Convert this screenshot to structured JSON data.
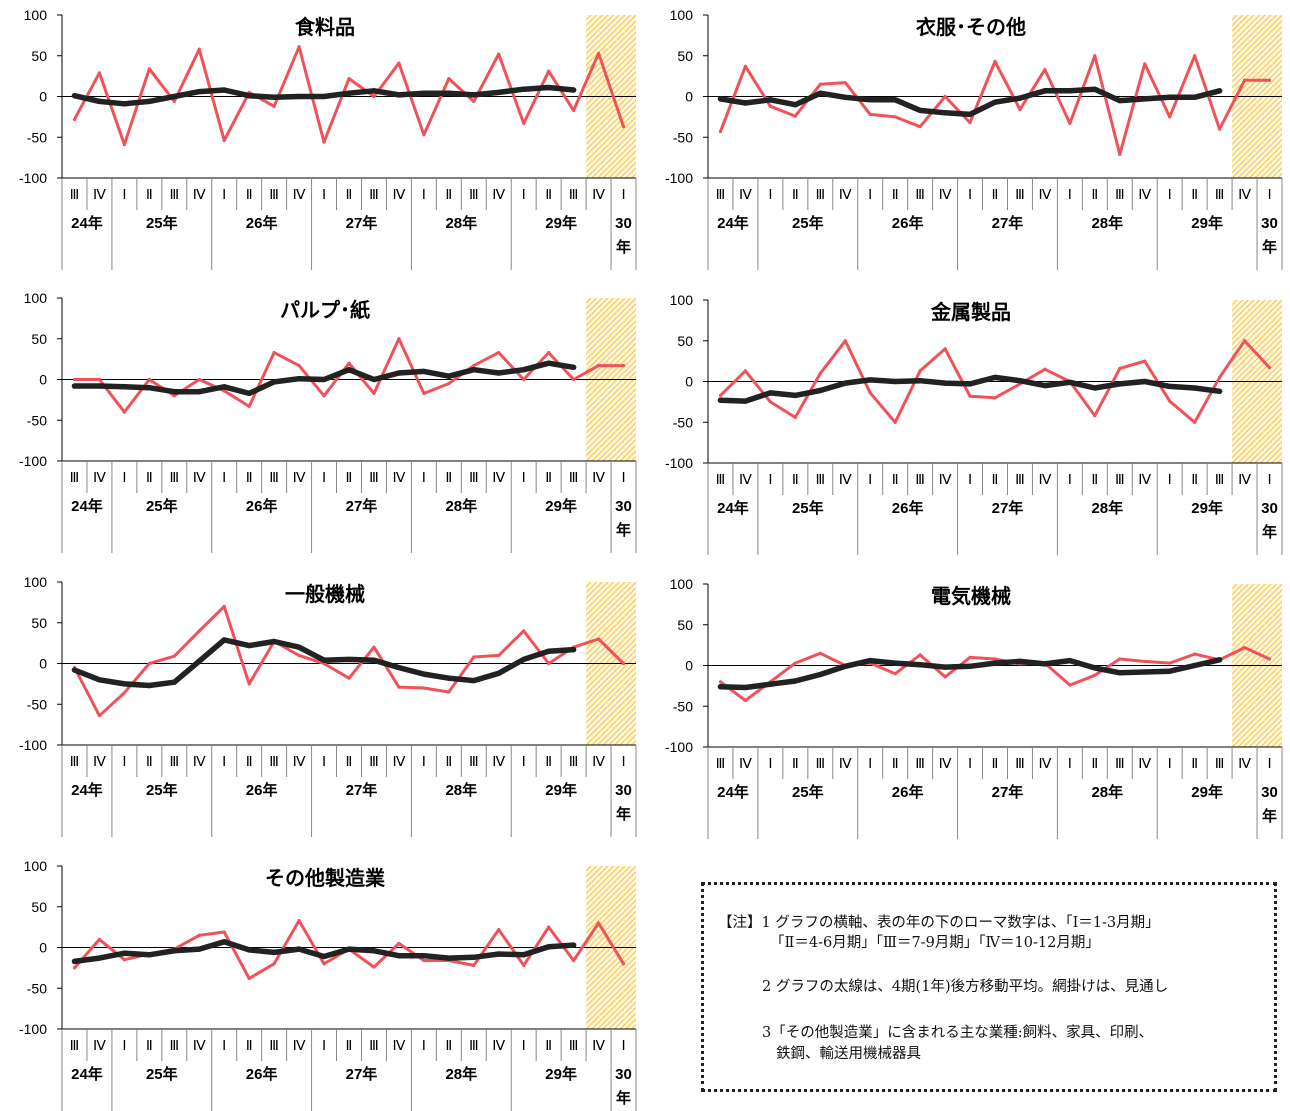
{
  "axis": {
    "quarter_labels": [
      "Ⅲ",
      "Ⅳ",
      "Ⅰ",
      "Ⅱ",
      "Ⅲ",
      "Ⅳ",
      "Ⅰ",
      "Ⅱ",
      "Ⅲ",
      "Ⅳ",
      "Ⅰ",
      "Ⅱ",
      "Ⅲ",
      "Ⅳ",
      "Ⅰ",
      "Ⅱ",
      "Ⅲ",
      "Ⅳ",
      "Ⅰ",
      "Ⅱ",
      "Ⅲ",
      "Ⅳ",
      "Ⅰ"
    ],
    "year_labels": [
      "24年",
      "25年",
      "26年",
      "27年",
      "28年",
      "29年"
    ],
    "last_year_label": [
      "30",
      "年"
    ],
    "ytick_labels": [
      "100",
      "50",
      "0",
      "-50",
      "-100"
    ]
  },
  "colors": {
    "di_line": "#f0525a",
    "moving_average": "#222222",
    "forecast_hatch": "#f5b51e",
    "forecast_fill": "#fff6dc"
  },
  "chart_data": [
    {
      "type": "line",
      "title": "食料品",
      "ylim": [
        -100,
        100
      ],
      "grid": false,
      "categories": [
        "24年Ⅲ",
        "24年Ⅳ",
        "25年Ⅰ",
        "25年Ⅱ",
        "25年Ⅲ",
        "25年Ⅳ",
        "26年Ⅰ",
        "26年Ⅱ",
        "26年Ⅲ",
        "26年Ⅳ",
        "27年Ⅰ",
        "27年Ⅱ",
        "27年Ⅲ",
        "27年Ⅳ",
        "28年Ⅰ",
        "28年Ⅱ",
        "28年Ⅲ",
        "28年Ⅳ",
        "29年Ⅰ",
        "29年Ⅱ",
        "29年Ⅲ",
        "29年Ⅳ",
        "30年Ⅰ"
      ],
      "forecast_from_index": 21,
      "series": [
        {
          "values": [
            -28,
            29,
            -59,
            34,
            -6,
            58,
            -54,
            5,
            -12,
            61,
            -56,
            22,
            0,
            41,
            -47,
            22,
            -6,
            52,
            -33,
            31,
            -17,
            53,
            -37
          ]
        },
        {
          "values": [
            1,
            -6,
            -9,
            -6,
            0,
            6,
            8,
            1,
            -1,
            0,
            0,
            4,
            7,
            2,
            4,
            4,
            2,
            5,
            9,
            11,
            8,
            null,
            null
          ]
        }
      ]
    },
    {
      "type": "line",
      "title": "衣服･その他",
      "ylim": [
        -100,
        100
      ],
      "grid": false,
      "categories": [
        "24年Ⅲ",
        "24年Ⅳ",
        "25年Ⅰ",
        "25年Ⅱ",
        "25年Ⅲ",
        "25年Ⅳ",
        "26年Ⅰ",
        "26年Ⅱ",
        "26年Ⅲ",
        "26年Ⅳ",
        "27年Ⅰ",
        "27年Ⅱ",
        "27年Ⅲ",
        "27年Ⅳ",
        "28年Ⅰ",
        "28年Ⅱ",
        "28年Ⅲ",
        "28年Ⅳ",
        "29年Ⅰ",
        "29年Ⅱ",
        "29年Ⅲ",
        "29年Ⅳ",
        "30年Ⅰ"
      ],
      "forecast_from_index": 21,
      "series": [
        {
          "values": [
            -43,
            37,
            -12,
            -24,
            15,
            17,
            -22,
            -25,
            -37,
            0,
            -32,
            43,
            -16,
            33,
            -33,
            50,
            -71,
            40,
            -25,
            50,
            -40,
            20,
            20
          ]
        },
        {
          "values": [
            -3,
            -8,
            -4,
            -10,
            4,
            -1,
            -4,
            -4,
            -17,
            -20,
            -22,
            -7,
            -2,
            7,
            7,
            9,
            -5,
            -3,
            -1,
            -1,
            7,
            null,
            null
          ]
        }
      ]
    },
    {
      "type": "line",
      "title": "パルプ･紙",
      "ylim": [
        -100,
        100
      ],
      "grid": false,
      "categories": [
        "24年Ⅲ",
        "24年Ⅳ",
        "25年Ⅰ",
        "25年Ⅱ",
        "25年Ⅲ",
        "25年Ⅳ",
        "26年Ⅰ",
        "26年Ⅱ",
        "26年Ⅲ",
        "26年Ⅳ",
        "27年Ⅰ",
        "27年Ⅱ",
        "27年Ⅲ",
        "27年Ⅳ",
        "28年Ⅰ",
        "28年Ⅱ",
        "28年Ⅲ",
        "28年Ⅳ",
        "29年Ⅰ",
        "29年Ⅱ",
        "29年Ⅲ",
        "29年Ⅳ",
        "30年Ⅰ"
      ],
      "forecast_from_index": 21,
      "series": [
        {
          "values": [
            0,
            0,
            -40,
            0,
            -20,
            0,
            -14,
            -33,
            33,
            17,
            -20,
            20,
            -17,
            50,
            -17,
            -5,
            17,
            33,
            0,
            33,
            0,
            17,
            17
          ]
        },
        {
          "values": [
            -8,
            -8,
            -9,
            -10,
            -15,
            -15,
            -9,
            -17,
            -3,
            1,
            0,
            12,
            0,
            8,
            10,
            4,
            12,
            8,
            12,
            20,
            15,
            null,
            null
          ]
        }
      ]
    },
    {
      "type": "line",
      "title": "金属製品",
      "ylim": [
        -100,
        100
      ],
      "grid": false,
      "categories": [
        "24年Ⅲ",
        "24年Ⅳ",
        "25年Ⅰ",
        "25年Ⅱ",
        "25年Ⅲ",
        "25年Ⅳ",
        "26年Ⅰ",
        "26年Ⅱ",
        "26年Ⅲ",
        "26年Ⅳ",
        "27年Ⅰ",
        "27年Ⅱ",
        "27年Ⅲ",
        "27年Ⅳ",
        "28年Ⅰ",
        "28年Ⅱ",
        "28年Ⅲ",
        "28年Ⅳ",
        "29年Ⅰ",
        "29年Ⅱ",
        "29年Ⅲ",
        "29年Ⅳ",
        "30年Ⅰ"
      ],
      "forecast_from_index": 21,
      "series": [
        {
          "values": [
            -17,
            13,
            -25,
            -44,
            10,
            50,
            -14,
            -50,
            13,
            40,
            -18,
            -20,
            -3,
            15,
            0,
            -42,
            16,
            25,
            -24,
            -50,
            5,
            50,
            17
          ]
        },
        {
          "values": [
            -23,
            -24,
            -14,
            -17,
            -11,
            -2,
            2,
            0,
            1,
            -2,
            -3,
            5,
            1,
            -5,
            -1,
            -8,
            -3,
            0,
            -6,
            -8,
            -12,
            null,
            null
          ]
        }
      ]
    },
    {
      "type": "line",
      "title": "一般機械",
      "ylim": [
        -100,
        100
      ],
      "grid": false,
      "categories": [
        "24年Ⅲ",
        "24年Ⅳ",
        "25年Ⅰ",
        "25年Ⅱ",
        "25年Ⅲ",
        "25年Ⅳ",
        "26年Ⅰ",
        "26年Ⅱ",
        "26年Ⅲ",
        "26年Ⅳ",
        "27年Ⅰ",
        "27年Ⅱ",
        "27年Ⅲ",
        "27年Ⅳ",
        "28年Ⅰ",
        "28年Ⅱ",
        "28年Ⅲ",
        "28年Ⅳ",
        "29年Ⅰ",
        "29年Ⅱ",
        "29年Ⅲ",
        "29年Ⅳ",
        "30年Ⅰ"
      ],
      "forecast_from_index": 21,
      "series": [
        {
          "values": [
            -5,
            -64,
            -36,
            0,
            9,
            40,
            70,
            -25,
            27,
            10,
            0,
            -18,
            20,
            -29,
            -30,
            -35,
            8,
            10,
            40,
            0,
            20,
            30,
            0
          ]
        },
        {
          "values": [
            -8,
            -20,
            -25,
            -27,
            -23,
            3,
            29,
            22,
            27,
            20,
            4,
            5,
            4,
            -5,
            -13,
            -18,
            -21,
            -12,
            5,
            15,
            17,
            null,
            null
          ]
        }
      ]
    },
    {
      "type": "line",
      "title": "電気機械",
      "ylim": [
        -100,
        100
      ],
      "grid": false,
      "categories": [
        "24年Ⅲ",
        "24年Ⅳ",
        "25年Ⅰ",
        "25年Ⅱ",
        "25年Ⅲ",
        "25年Ⅳ",
        "26年Ⅰ",
        "26年Ⅱ",
        "26年Ⅲ",
        "26年Ⅳ",
        "27年Ⅰ",
        "27年Ⅱ",
        "27年Ⅲ",
        "27年Ⅳ",
        "28年Ⅰ",
        "28年Ⅱ",
        "28年Ⅲ",
        "28年Ⅳ",
        "29年Ⅰ",
        "29年Ⅱ",
        "29年Ⅲ",
        "29年Ⅳ",
        "30年Ⅰ"
      ],
      "forecast_from_index": 21,
      "series": [
        {
          "values": [
            -20,
            -43,
            -20,
            3,
            15,
            0,
            3,
            -10,
            13,
            -14,
            10,
            8,
            2,
            3,
            -24,
            -12,
            8,
            5,
            3,
            14,
            7,
            22,
            8
          ]
        },
        {
          "values": [
            -26,
            -27,
            -23,
            -19,
            -11,
            -1,
            6,
            3,
            1,
            -2,
            -1,
            3,
            5,
            2,
            6,
            -3,
            -9,
            -8,
            -7,
            0,
            7,
            null,
            null
          ]
        }
      ]
    },
    {
      "type": "line",
      "title": "その他製造業",
      "ylim": [
        -100,
        100
      ],
      "grid": false,
      "categories": [
        "24年Ⅲ",
        "24年Ⅳ",
        "25年Ⅰ",
        "25年Ⅱ",
        "25年Ⅲ",
        "25年Ⅳ",
        "26年Ⅰ",
        "26年Ⅱ",
        "26年Ⅲ",
        "26年Ⅳ",
        "27年Ⅰ",
        "27年Ⅱ",
        "27年Ⅲ",
        "27年Ⅳ",
        "28年Ⅰ",
        "28年Ⅱ",
        "28年Ⅲ",
        "28年Ⅳ",
        "29年Ⅰ",
        "29年Ⅱ",
        "29年Ⅲ",
        "29年Ⅳ",
        "30年Ⅰ"
      ],
      "forecast_from_index": 21,
      "series": [
        {
          "values": [
            -25,
            10,
            -15,
            -8,
            -2,
            15,
            19,
            -38,
            -20,
            33,
            -20,
            -2,
            -24,
            5,
            -16,
            -16,
            -22,
            22,
            -22,
            25,
            -16,
            30,
            -20
          ]
        },
        {
          "values": [
            -17,
            -13,
            -7,
            -9,
            -4,
            -2,
            7,
            -3,
            -6,
            -2,
            -11,
            -2,
            -4,
            -10,
            -10,
            -13,
            -12,
            -8,
            -9,
            1,
            3,
            null,
            null
          ]
        }
      ]
    }
  ],
  "note": {
    "line1": "【注】1 グラフの横軸、表の年の下のローマ数字は、「Ⅰ＝1-3月期」",
    "line2": "「Ⅱ＝4-6月期」「Ⅲ＝7-9月期」「Ⅳ＝10-12月期」",
    "line3": "2 グラフの太線は、4期(1年)後方移動平均。網掛けは、見通し",
    "line4": "3「その他製造業」に含まれる主な業種:飼料、家具、印刷、",
    "line5": "鉄鋼、輸送用機械器具"
  }
}
